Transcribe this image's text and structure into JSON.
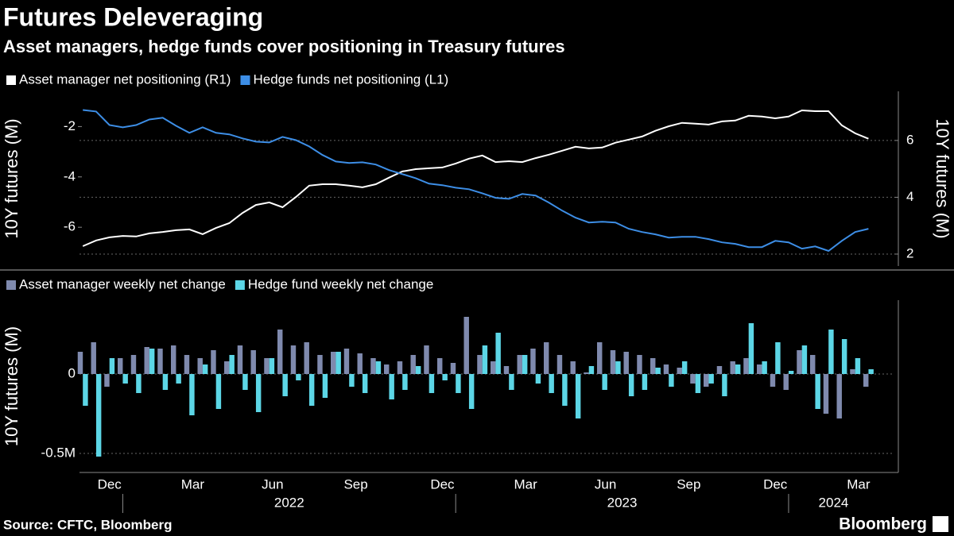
{
  "title": "Futures Deleveraging",
  "subtitle": "Asset managers, hedge funds cover positioning in Treasury futures",
  "source": "Source: CFTC, Bloomberg",
  "brand": "Bloomberg",
  "chart_data": [
    {
      "type": "line",
      "ylabel": "10Y futures (M)",
      "y2label": "10Y futures (M)",
      "xlim": [
        2021.87,
        2024.27
      ],
      "ylim": [
        -7.54,
        -0.6
      ],
      "yticks": [
        -2,
        -4,
        -6
      ],
      "y2lim": [
        1.58,
        7.73
      ],
      "y2ticks": [
        2,
        4,
        6
      ],
      "grid": true,
      "x": [
        2021.88,
        2021.92,
        2021.96,
        2022.0,
        2022.04,
        2022.08,
        2022.12,
        2022.16,
        2022.2,
        2022.24,
        2022.28,
        2022.32,
        2022.36,
        2022.4,
        2022.44,
        2022.48,
        2022.52,
        2022.56,
        2022.6,
        2022.64,
        2022.68,
        2022.72,
        2022.76,
        2022.8,
        2022.84,
        2022.88,
        2022.92,
        2022.96,
        2023.0,
        2023.04,
        2023.08,
        2023.12,
        2023.16,
        2023.2,
        2023.24,
        2023.28,
        2023.32,
        2023.36,
        2023.4,
        2023.44,
        2023.48,
        2023.52,
        2023.56,
        2023.6,
        2023.64,
        2023.68,
        2023.72,
        2023.76,
        2023.8,
        2023.84,
        2023.88,
        2023.92,
        2023.96,
        2024.0,
        2024.04,
        2024.08,
        2024.12,
        2024.16,
        2024.2,
        2024.24
      ],
      "series": [
        {
          "name": "Asset manager net positioning (R1)",
          "color": "#ffffff",
          "axis": "y2",
          "values": [
            2.28,
            2.48,
            2.59,
            2.64,
            2.62,
            2.73,
            2.78,
            2.84,
            2.87,
            2.7,
            2.92,
            3.09,
            3.45,
            3.73,
            3.82,
            3.65,
            4.01,
            4.41,
            4.46,
            4.46,
            4.41,
            4.35,
            4.46,
            4.69,
            4.91,
            4.99,
            5.02,
            5.05,
            5.19,
            5.36,
            5.47,
            5.24,
            5.27,
            5.24,
            5.38,
            5.5,
            5.64,
            5.78,
            5.72,
            5.75,
            5.92,
            6.03,
            6.14,
            6.34,
            6.5,
            6.62,
            6.59,
            6.56,
            6.67,
            6.7,
            6.87,
            6.84,
            6.78,
            6.84,
            7.06,
            7.03,
            7.03,
            6.53,
            6.25,
            6.06
          ]
        },
        {
          "name": "Hedge funds net positioning (L1)",
          "color": "#3d8ee6",
          "values": [
            -1.34,
            -1.4,
            -1.94,
            -2.03,
            -1.94,
            -1.72,
            -1.65,
            -1.97,
            -2.25,
            -2.03,
            -2.25,
            -2.31,
            -2.47,
            -2.6,
            -2.63,
            -2.41,
            -2.54,
            -2.79,
            -3.13,
            -3.39,
            -3.45,
            -3.42,
            -3.51,
            -3.73,
            -3.89,
            -4.05,
            -4.27,
            -4.33,
            -4.43,
            -4.49,
            -4.65,
            -4.83,
            -4.87,
            -4.68,
            -4.74,
            -5.02,
            -5.34,
            -5.62,
            -5.81,
            -5.78,
            -5.81,
            -6.06,
            -6.19,
            -6.28,
            -6.41,
            -6.38,
            -6.38,
            -6.47,
            -6.6,
            -6.66,
            -6.79,
            -6.79,
            -6.54,
            -6.6,
            -6.85,
            -6.76,
            -6.94,
            -6.54,
            -6.19,
            -6.06
          ]
        }
      ]
    },
    {
      "type": "bar",
      "ylabel": "10Y futures (M)",
      "xlim": [
        2021.87,
        2024.27
      ],
      "ylim": [
        -0.62,
        0.465
      ],
      "yticks": [
        0,
        {
          "value": -0.5,
          "label": "-0.5M"
        }
      ],
      "grid": true,
      "xticks": [
        {
          "value": 2021.96,
          "label": "Dec"
        },
        {
          "value": 2022.21,
          "label": "Mar"
        },
        {
          "value": 2022.45,
          "label": "Jun"
        },
        {
          "value": 2022.7,
          "label": "Sep"
        },
        {
          "value": 2022.96,
          "label": "Dec"
        },
        {
          "value": 2023.21,
          "label": "Mar"
        },
        {
          "value": 2023.45,
          "label": "Jun"
        },
        {
          "value": 2023.7,
          "label": "Sep"
        },
        {
          "value": 2023.96,
          "label": "Dec"
        },
        {
          "value": 2024.21,
          "label": "Mar"
        }
      ],
      "year_ticks": [
        2022,
        2023,
        2024
      ],
      "x": [
        2021.88,
        2021.92,
        2021.96,
        2022.0,
        2022.04,
        2022.08,
        2022.12,
        2022.16,
        2022.2,
        2022.24,
        2022.28,
        2022.32,
        2022.36,
        2022.4,
        2022.44,
        2022.48,
        2022.52,
        2022.56,
        2022.6,
        2022.64,
        2022.68,
        2022.72,
        2022.76,
        2022.8,
        2022.84,
        2022.88,
        2022.92,
        2022.96,
        2023.0,
        2023.04,
        2023.08,
        2023.12,
        2023.16,
        2023.2,
        2023.24,
        2023.28,
        2023.32,
        2023.36,
        2023.4,
        2023.44,
        2023.48,
        2023.52,
        2023.56,
        2023.6,
        2023.64,
        2023.68,
        2023.72,
        2023.76,
        2023.8,
        2023.84,
        2023.88,
        2023.92,
        2023.96,
        2024.0,
        2024.04,
        2024.08,
        2024.12,
        2024.16,
        2024.2,
        2024.24
      ],
      "series": [
        {
          "name": "Asset manager weekly net change",
          "color": "#7f8aae",
          "values": [
            0.14,
            0.2,
            -0.08,
            0.1,
            0.12,
            0.17,
            0.16,
            0.18,
            0.12,
            0.1,
            0.15,
            0.08,
            0.18,
            0.15,
            0.1,
            0.28,
            0.18,
            0.2,
            0.12,
            0.14,
            0.16,
            0.13,
            0.1,
            0.06,
            0.08,
            0.12,
            0.18,
            0.1,
            0.07,
            0.36,
            0.12,
            0.08,
            0.05,
            0.12,
            0.16,
            0.2,
            0.12,
            0.08,
            0.01,
            0.2,
            0.15,
            0.14,
            0.12,
            0.1,
            0.06,
            0.04,
            -0.06,
            -0.08,
            0.05,
            0.08,
            0.1,
            0.06,
            -0.08,
            -0.1,
            0.15,
            0.12,
            -0.25,
            -0.28,
            0.03,
            -0.08
          ]
        },
        {
          "name": "Hedge fund weekly net change",
          "color": "#5cd6e6",
          "values": [
            -0.2,
            -0.52,
            0.1,
            -0.06,
            -0.12,
            0.16,
            -0.1,
            -0.06,
            -0.26,
            0.06,
            -0.22,
            0.12,
            -0.1,
            -0.24,
            0.1,
            -0.14,
            -0.04,
            -0.2,
            -0.15,
            0.14,
            -0.08,
            -0.12,
            0.08,
            -0.16,
            -0.1,
            0.05,
            -0.12,
            -0.04,
            -0.12,
            -0.22,
            0.18,
            0.26,
            -0.1,
            0.12,
            -0.06,
            -0.12,
            -0.2,
            -0.28,
            0.05,
            -0.1,
            0.08,
            -0.14,
            -0.1,
            0.04,
            -0.08,
            0.08,
            -0.12,
            -0.06,
            -0.14,
            0.06,
            0.32,
            0.08,
            0.2,
            0.02,
            0.18,
            -0.22,
            0.28,
            0.22,
            0.1,
            0.03
          ]
        }
      ]
    }
  ]
}
